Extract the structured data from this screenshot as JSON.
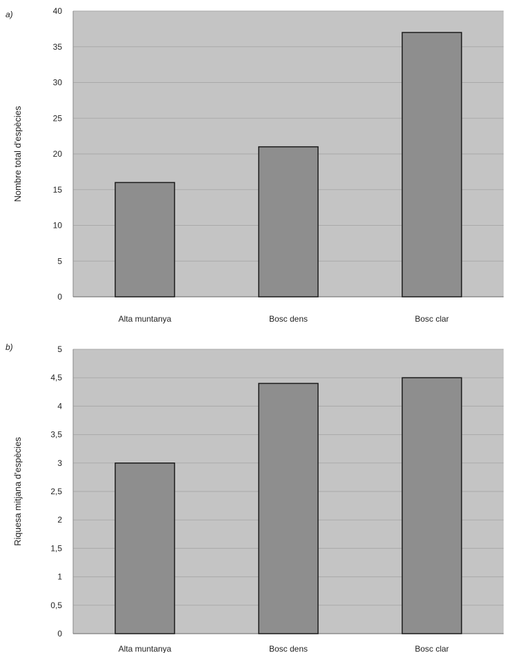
{
  "chart_data": [
    {
      "panel_label": "a)",
      "type": "bar",
      "categories": [
        "Alta muntanya",
        "Bosc dens",
        "Bosc clar"
      ],
      "values": [
        16,
        21,
        37
      ],
      "ylabel": "Nombre total d'espècies",
      "ylim": [
        0,
        40
      ],
      "yticks": [
        "0",
        "5",
        "10",
        "15",
        "20",
        "25",
        "30",
        "35",
        "40"
      ],
      "grid": true,
      "colors": {
        "plot_bg": "#c4c4c4",
        "bar": "#8e8e8e",
        "gridline": "#a9a9a9"
      }
    },
    {
      "panel_label": "b)",
      "type": "bar",
      "categories": [
        "Alta muntanya",
        "Bosc dens",
        "Bosc clar"
      ],
      "values": [
        3,
        4.4,
        4.5
      ],
      "ylabel": "Riquesa mitjana d'espècies",
      "ylim": [
        0,
        5
      ],
      "yticks": [
        "0",
        "0,5",
        "1",
        "1,5",
        "2",
        "2,5",
        "3",
        "3,5",
        "4",
        "4,5",
        "5"
      ],
      "grid": true,
      "colors": {
        "plot_bg": "#c4c4c4",
        "bar": "#8e8e8e",
        "gridline": "#a9a9a9"
      }
    }
  ]
}
